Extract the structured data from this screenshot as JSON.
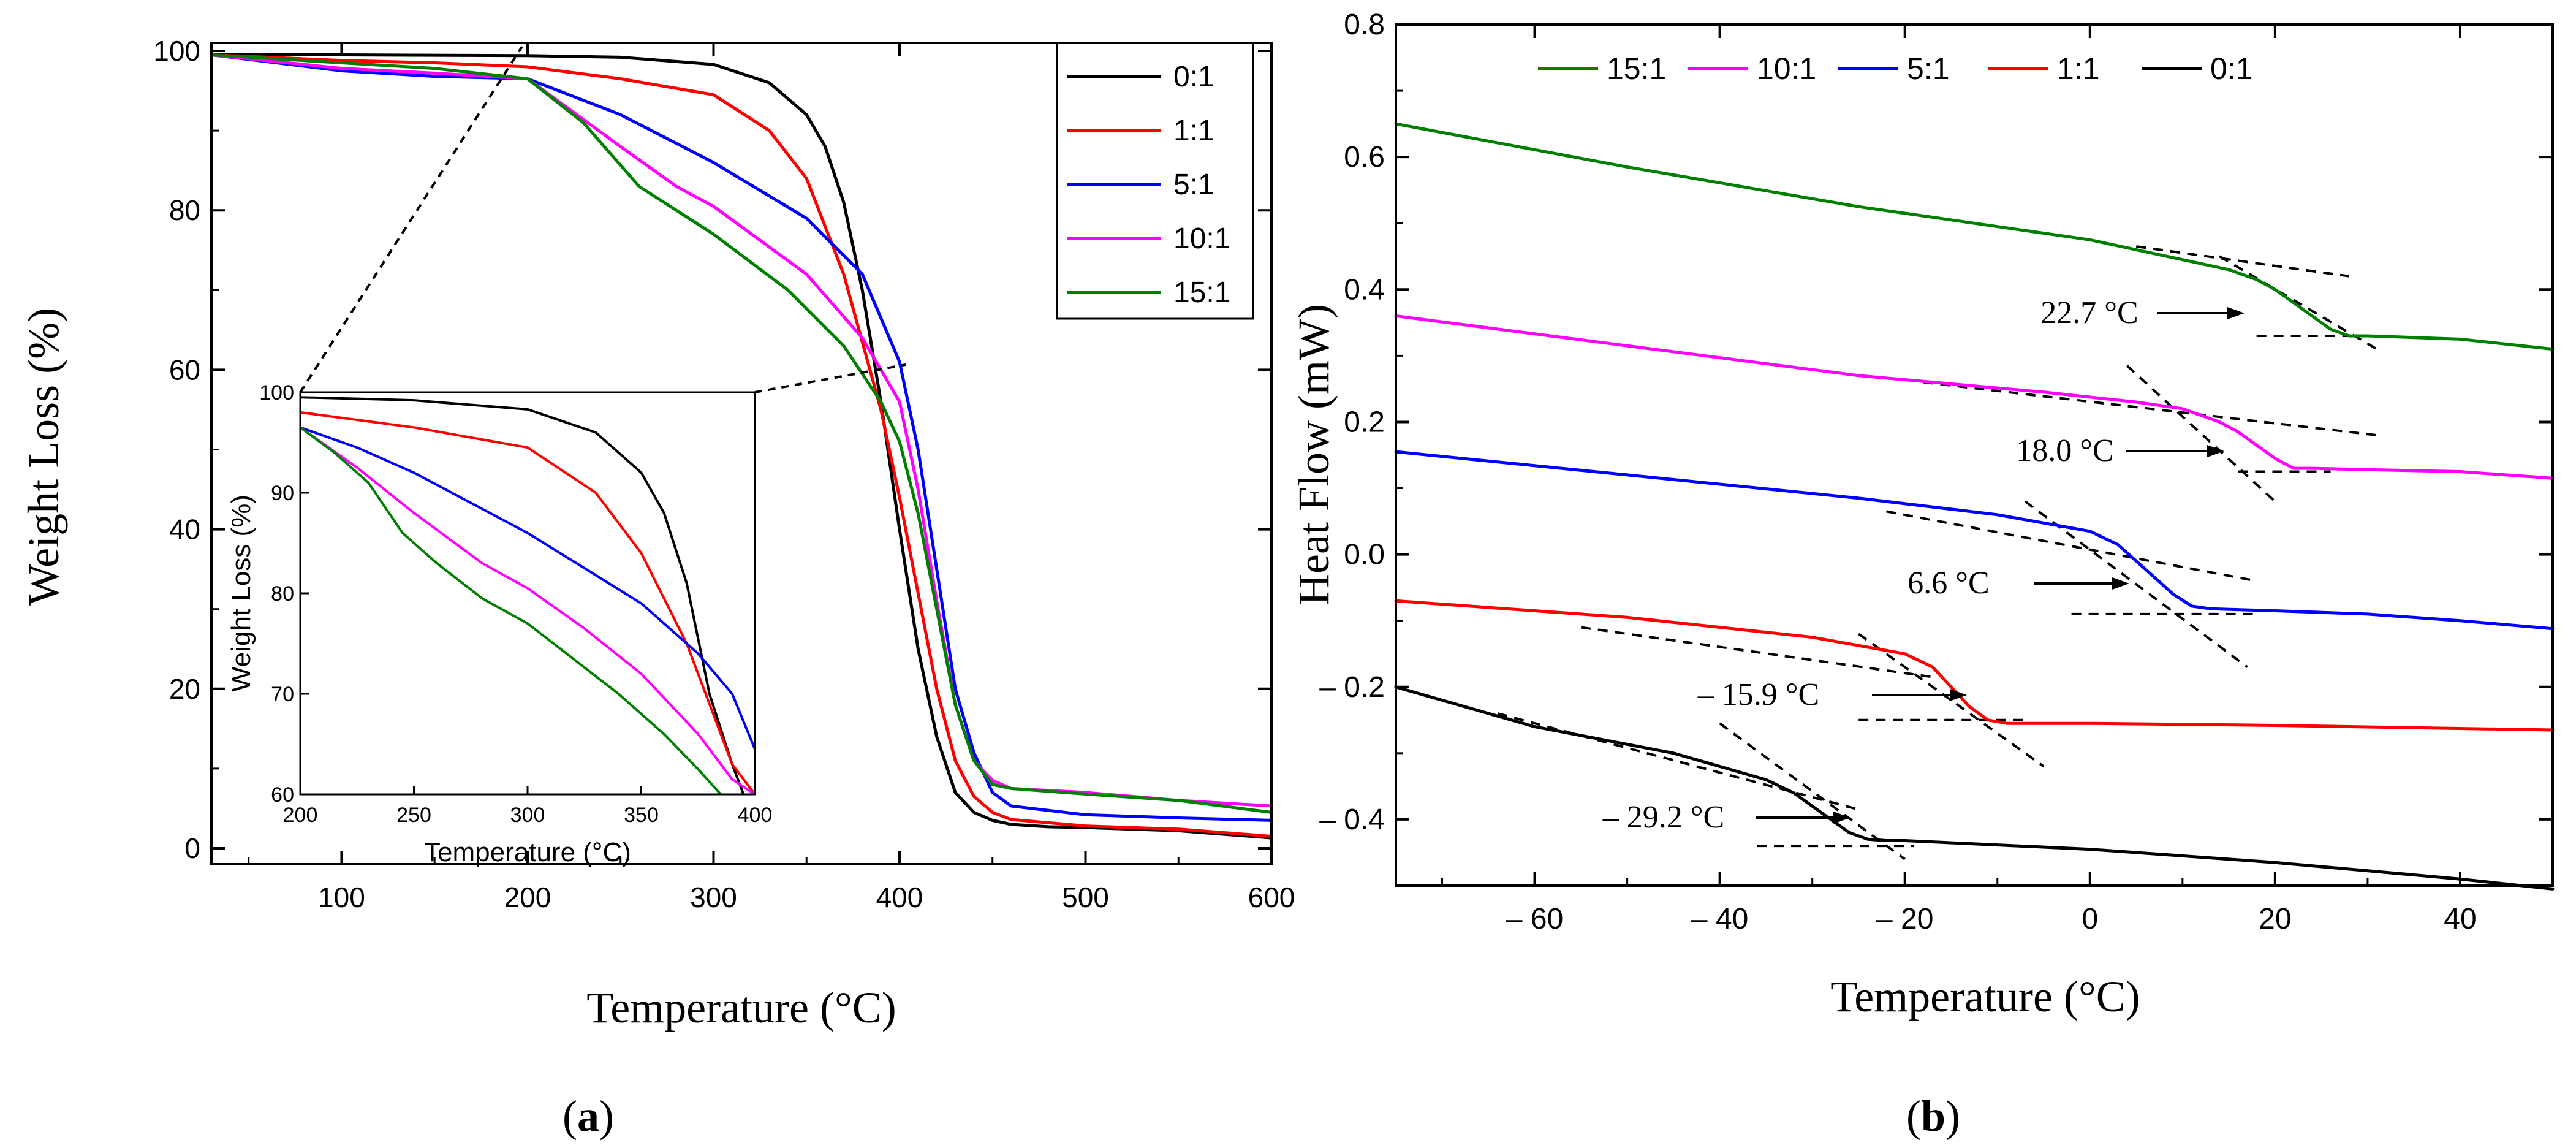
{
  "chart_data": [
    {
      "id": "a",
      "type": "line",
      "panel_label": "a",
      "xlabel": "Temperature (°C)",
      "ylabel": "Weight Loss (%)",
      "xlim": [
        30,
        600
      ],
      "ylim": [
        -2,
        101
      ],
      "xticks": [
        100,
        200,
        300,
        400,
        500,
        600
      ],
      "yticks": [
        0,
        20,
        40,
        60,
        80,
        100
      ],
      "legend": "top-right",
      "series": [
        {
          "name": "0:1",
          "color": "#000000",
          "x": [
            30,
            100,
            200,
            250,
            300,
            330,
            350,
            360,
            370,
            380,
            390,
            400,
            410,
            420,
            430,
            440,
            450,
            460,
            480,
            500,
            550,
            600
          ],
          "y": [
            99.5,
            99.5,
            99.4,
            99.2,
            98.3,
            96,
            92,
            88,
            81,
            70,
            56,
            40,
            25,
            14,
            7,
            4.5,
            3.5,
            3,
            2.7,
            2.6,
            2.2,
            1.3
          ]
        },
        {
          "name": "1:1",
          "color": "#ff0000",
          "x": [
            30,
            100,
            150,
            200,
            250,
            300,
            330,
            350,
            370,
            390,
            400,
            410,
            420,
            430,
            440,
            450,
            460,
            500,
            550,
            600
          ],
          "y": [
            99.5,
            98.8,
            98.5,
            98,
            96.5,
            94.5,
            90,
            84,
            72,
            55,
            44,
            32,
            20,
            11,
            6.5,
            4.5,
            3.6,
            2.8,
            2.4,
            1.5
          ]
        },
        {
          "name": "5:1",
          "color": "#0000ff",
          "x": [
            30,
            100,
            150,
            200,
            250,
            300,
            350,
            380,
            400,
            410,
            420,
            430,
            440,
            450,
            460,
            500,
            550,
            600
          ],
          "y": [
            99.5,
            97.5,
            96.8,
            96.5,
            92,
            86,
            79,
            72,
            61,
            50,
            35,
            20,
            12,
            7,
            5.3,
            4.2,
            3.8,
            3.5
          ]
        },
        {
          "name": "10:1",
          "color": "#ff00ff",
          "x": [
            30,
            100,
            150,
            200,
            250,
            280,
            300,
            350,
            380,
            400,
            410,
            420,
            430,
            440,
            450,
            460,
            500,
            550,
            600
          ],
          "y": [
            99.5,
            97.8,
            97.2,
            96.5,
            88,
            83,
            80.5,
            72,
            64,
            56,
            45,
            31,
            18,
            11,
            8.5,
            7.5,
            7,
            6,
            5.3
          ]
        },
        {
          "name": "15:1",
          "color": "#008000",
          "x": [
            30,
            100,
            150,
            200,
            230,
            260,
            300,
            340,
            370,
            390,
            400,
            410,
            420,
            430,
            440,
            450,
            460,
            500,
            550,
            600
          ],
          "y": [
            99.5,
            98.5,
            97.8,
            96.5,
            91,
            83,
            77,
            70,
            63,
            56,
            51,
            42,
            30,
            18,
            11,
            8,
            7.5,
            6.8,
            6,
            4.5
          ]
        }
      ]
    },
    {
      "id": "a-inset",
      "type": "line",
      "xlabel": "Temperature (°C)",
      "ylabel": "Weight Loss (%)",
      "xlim": [
        200,
        400
      ],
      "ylim": [
        60,
        100
      ],
      "xticks": [
        200,
        250,
        300,
        350,
        400
      ],
      "yticks": [
        60,
        70,
        80,
        90,
        100
      ],
      "series": [
        {
          "name": "0:1",
          "color": "#000000",
          "x": [
            200,
            250,
            300,
            330,
            350,
            360,
            370,
            380,
            390,
            395
          ],
          "y": [
            99.5,
            99.2,
            98.3,
            96,
            92,
            88,
            81,
            70,
            63,
            60
          ]
        },
        {
          "name": "1:1",
          "color": "#ff0000",
          "x": [
            200,
            250,
            300,
            330,
            350,
            370,
            390,
            400
          ],
          "y": [
            98,
            96.5,
            94.5,
            90,
            84,
            75,
            63,
            60
          ]
        },
        {
          "name": "5:1",
          "color": "#0000ff",
          "x": [
            200,
            225,
            250,
            275,
            300,
            325,
            350,
            375,
            390,
            400
          ],
          "y": [
            96.5,
            94.5,
            92,
            89,
            86,
            82.5,
            79,
            74,
            70,
            64.5
          ]
        },
        {
          "name": "10:1",
          "color": "#ff00ff",
          "x": [
            200,
            225,
            250,
            280,
            300,
            325,
            350,
            375,
            390,
            400
          ],
          "y": [
            96.5,
            92.5,
            88,
            83,
            80.5,
            76.5,
            72,
            66,
            61.5,
            60
          ]
        },
        {
          "name": "15:1",
          "color": "#008000",
          "x": [
            200,
            215,
            230,
            245,
            260,
            280,
            300,
            320,
            340,
            360,
            375,
            385
          ],
          "y": [
            96.5,
            94,
            91,
            86,
            83,
            79.5,
            77,
            73.5,
            70,
            66,
            62.5,
            60
          ]
        }
      ]
    },
    {
      "id": "b",
      "type": "line",
      "panel_label": "b",
      "xlabel": "Temperature (°C)",
      "ylabel": "Heat Flow (mW)",
      "xlim": [
        -75,
        50
      ],
      "ylim": [
        -0.5,
        0.8
      ],
      "xticks": [
        -60,
        -40,
        -20,
        0,
        20,
        40
      ],
      "xtick_labels": [
        "– 60",
        "– 40",
        "– 20",
        "0",
        "20",
        "40"
      ],
      "yticks": [
        -0.4,
        -0.2,
        0.0,
        0.2,
        0.4,
        0.6,
        0.8
      ],
      "ytick_labels": [
        "– 0.4",
        "– 0.2",
        "0.0",
        "0.2",
        "0.4",
        "0.6",
        "0.8"
      ],
      "legend": "top",
      "series": [
        {
          "name": "15:1",
          "color": "#008000",
          "x": [
            -75,
            -50,
            -25,
            0,
            10,
            15,
            18,
            20,
            22,
            24,
            26,
            28,
            30,
            40,
            50
          ],
          "y": [
            0.65,
            0.585,
            0.525,
            0.475,
            0.445,
            0.43,
            0.415,
            0.4,
            0.38,
            0.36,
            0.34,
            0.33,
            0.33,
            0.325,
            0.31
          ]
        },
        {
          "name": "10:1",
          "color": "#ff00ff",
          "x": [
            -75,
            -50,
            -25,
            -5,
            5,
            10,
            14,
            16,
            18,
            20,
            22,
            24,
            30,
            40,
            50
          ],
          "y": [
            0.36,
            0.315,
            0.27,
            0.245,
            0.23,
            0.22,
            0.2,
            0.185,
            0.165,
            0.145,
            0.13,
            0.13,
            0.128,
            0.125,
            0.115
          ]
        },
        {
          "name": "5:1",
          "color": "#0000ff",
          "x": [
            -75,
            -50,
            -25,
            -10,
            0,
            3,
            5,
            7,
            9,
            11,
            13,
            20,
            30,
            40,
            50
          ],
          "y": [
            0.155,
            0.12,
            0.085,
            0.06,
            0.035,
            0.015,
            -0.01,
            -0.035,
            -0.06,
            -0.078,
            -0.082,
            -0.085,
            -0.09,
            -0.1,
            -0.112
          ]
        },
        {
          "name": "1:1",
          "color": "#ff0000",
          "x": [
            -75,
            -50,
            -30,
            -20,
            -17,
            -15,
            -13,
            -11,
            -9,
            0,
            20,
            50
          ],
          "y": [
            -0.07,
            -0.095,
            -0.125,
            -0.15,
            -0.17,
            -0.2,
            -0.23,
            -0.25,
            -0.255,
            -0.255,
            -0.258,
            -0.265
          ]
        },
        {
          "name": "0:1",
          "color": "#000000",
          "x": [
            -75,
            -60,
            -45,
            -35,
            -32,
            -30,
            -28,
            -26,
            -24,
            -22,
            -20,
            0,
            20,
            40,
            50
          ],
          "y": [
            -0.2,
            -0.26,
            -0.3,
            -0.34,
            -0.36,
            -0.38,
            -0.4,
            -0.42,
            -0.43,
            -0.432,
            -0.432,
            -0.445,
            -0.465,
            -0.49,
            -0.505
          ]
        }
      ],
      "annotations": [
        {
          "text": "22.7 °C",
          "target_x": 22.7,
          "target_y": 0.375
        },
        {
          "text": "18.0 °C",
          "target_x": 18.0,
          "target_y": 0.165
        },
        {
          "text": "6.6 °C",
          "target_x": 6.6,
          "target_y": -0.045
        },
        {
          "text": "– 15.9 °C",
          "target_x": -15.9,
          "target_y": -0.215
        },
        {
          "text": "– 29.2 °C",
          "target_x": -29.2,
          "target_y": -0.39
        }
      ]
    }
  ]
}
